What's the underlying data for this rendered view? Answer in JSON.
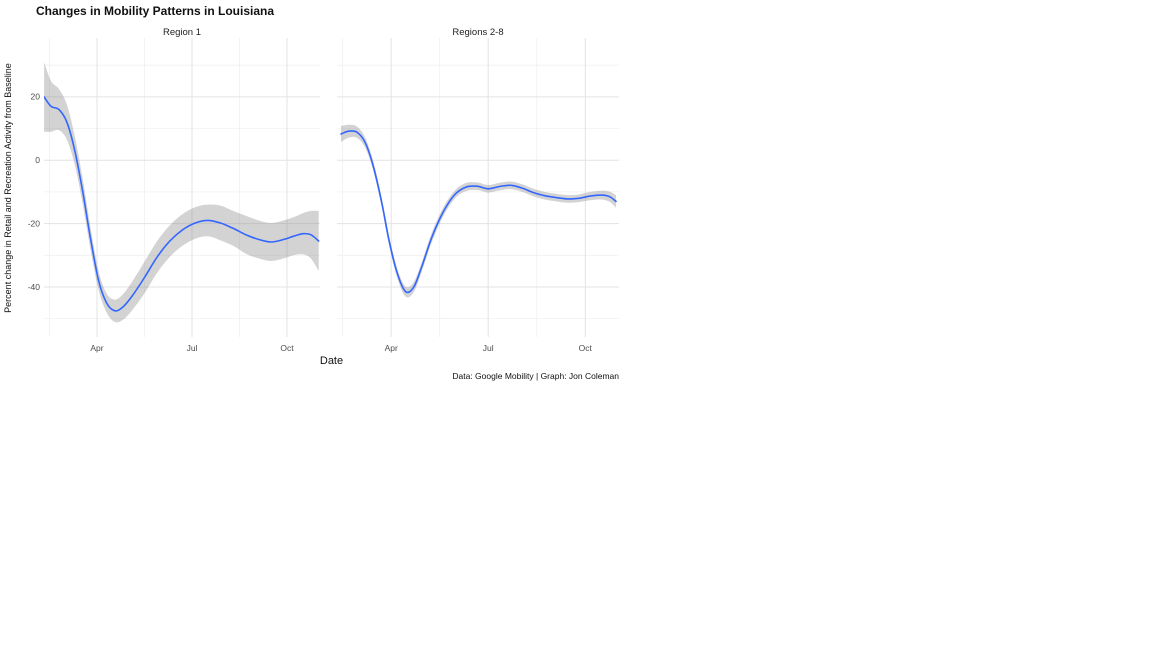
{
  "title": "Changes in Mobility Patterns in Louisiana",
  "axis": {
    "x_label": "Date",
    "y_label": "Percent change in Retail and Recreation Activity from Baseline"
  },
  "caption": "Data: Google Mobility | Graph: Jon Coleman",
  "facets": [
    "Region 1",
    "Regions 2-8"
  ],
  "colors": {
    "line": "#3366FF",
    "ribbon": "#8c8c8c",
    "ribbon_opacity": 0.38,
    "grid_major": "#e3e3e3",
    "grid_minor": "#f0f0f0",
    "tick_text": "#4d4d4d",
    "background": "#ffffff"
  },
  "chart_data": {
    "type": "line",
    "title": "Changes in Mobility Patterns in Louisiana",
    "xlabel": "Date",
    "ylabel": "Percent change in Retail and Recreation Activity from Baseline",
    "caption": "Data: Google Mobility | Graph: Jon Coleman",
    "x_unit": "month index: Apr=3, Jul=6, Oct=9",
    "xlim": [
      1.326,
      10.042
    ],
    "ylim": [
      -55.8,
      38.6
    ],
    "grid": true,
    "legend": "none",
    "x_major_ticks": [
      {
        "pos": 3,
        "label": "Apr"
      },
      {
        "pos": 6,
        "label": "Jul"
      },
      {
        "pos": 9,
        "label": "Oct"
      }
    ],
    "x_minor_ticks": [
      1.5,
      4.5,
      7.5
    ],
    "y_major_ticks": [
      {
        "pos": 20,
        "label": "20"
      },
      {
        "pos": 0,
        "label": "0"
      },
      {
        "pos": -20,
        "label": "-20"
      },
      {
        "pos": -40,
        "label": "-40"
      }
    ],
    "y_minor_ticks": [
      30,
      10,
      -10,
      -30,
      -50
    ],
    "series": [
      {
        "name": "Region 1",
        "points_format": [
          "x_month",
          "y_percent",
          "ci_halfwidth"
        ],
        "points": [
          [
            1.33,
            20,
            11
          ],
          [
            1.55,
            17,
            8
          ],
          [
            1.8,
            16,
            6.5
          ],
          [
            2.05,
            12,
            5.5
          ],
          [
            2.3,
            3,
            4.5
          ],
          [
            2.55,
            -10,
            4
          ],
          [
            2.8,
            -25,
            3.5
          ],
          [
            3.05,
            -38,
            3
          ],
          [
            3.3,
            -45,
            3
          ],
          [
            3.55,
            -47.5,
            3.5
          ],
          [
            3.8,
            -46.5,
            4
          ],
          [
            4.1,
            -43,
            4.5
          ],
          [
            4.5,
            -37,
            5
          ],
          [
            4.9,
            -30.5,
            5
          ],
          [
            5.3,
            -25.5,
            5
          ],
          [
            5.7,
            -22,
            5
          ],
          [
            6.1,
            -19.8,
            5
          ],
          [
            6.5,
            -19,
            5
          ],
          [
            6.9,
            -19.8,
            5.5
          ],
          [
            7.3,
            -21.5,
            5.5
          ],
          [
            7.7,
            -23.5,
            6
          ],
          [
            8.1,
            -25,
            6
          ],
          [
            8.5,
            -25.8,
            6
          ],
          [
            8.9,
            -25,
            6
          ],
          [
            9.2,
            -24,
            6
          ],
          [
            9.5,
            -23.2,
            6.5
          ],
          [
            9.75,
            -23.5,
            7.5
          ],
          [
            10.0,
            -25.5,
            9.5
          ]
        ]
      },
      {
        "name": "Regions 2-8",
        "points_format": [
          "x_month",
          "y_percent",
          "ci_halfwidth"
        ],
        "points": [
          [
            1.45,
            8.3,
            2.5
          ],
          [
            1.7,
            9.2,
            2
          ],
          [
            1.95,
            8.8,
            1.8
          ],
          [
            2.2,
            5.5,
            1.6
          ],
          [
            2.45,
            -2,
            1.5
          ],
          [
            2.7,
            -13,
            1.5
          ],
          [
            2.95,
            -26,
            1.5
          ],
          [
            3.2,
            -36,
            1.5
          ],
          [
            3.45,
            -41.5,
            1.6
          ],
          [
            3.7,
            -40,
            1.6
          ],
          [
            3.95,
            -33.5,
            1.5
          ],
          [
            4.25,
            -24.5,
            1.5
          ],
          [
            4.6,
            -16.5,
            1.4
          ],
          [
            4.95,
            -11,
            1.3
          ],
          [
            5.3,
            -8.5,
            1.3
          ],
          [
            5.65,
            -8.2,
            1.2
          ],
          [
            6.0,
            -9,
            1.2
          ],
          [
            6.35,
            -8.3,
            1.2
          ],
          [
            6.7,
            -7.9,
            1.2
          ],
          [
            7.05,
            -8.8,
            1.2
          ],
          [
            7.4,
            -10.2,
            1.2
          ],
          [
            7.75,
            -11.2,
            1.2
          ],
          [
            8.1,
            -11.8,
            1.2
          ],
          [
            8.45,
            -12.2,
            1.2
          ],
          [
            8.8,
            -12,
            1.2
          ],
          [
            9.15,
            -11.3,
            1.3
          ],
          [
            9.5,
            -11,
            1.4
          ],
          [
            9.75,
            -11.5,
            1.6
          ],
          [
            9.95,
            -13,
            2
          ]
        ]
      }
    ]
  }
}
